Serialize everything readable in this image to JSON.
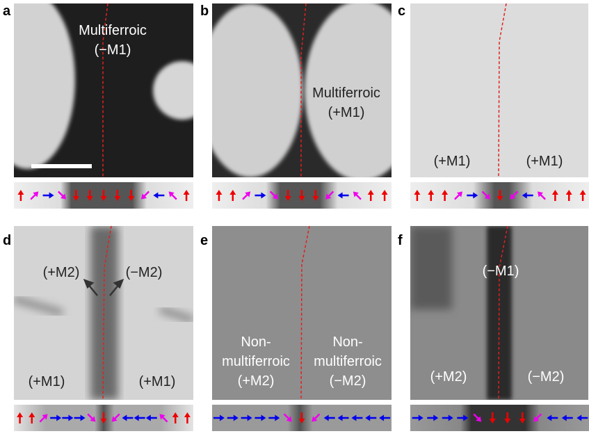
{
  "panels": [
    {
      "letter": "a",
      "labels": [
        [
          "Multiferroic",
          "(−M1)"
        ]
      ]
    },
    {
      "letter": "b",
      "labels": [
        [
          "Multiferroic",
          "(+M1)"
        ]
      ]
    },
    {
      "letter": "c",
      "labels": [
        [
          "(+M1)"
        ],
        [
          "(+M1)"
        ]
      ]
    },
    {
      "letter": "d",
      "labels": [
        [
          "(+M2)"
        ],
        [
          "(−M2)"
        ],
        [
          "(+M1)"
        ],
        [
          "(+M1)"
        ]
      ]
    },
    {
      "letter": "e",
      "labels": [
        [
          "Non-",
          "multiferroic",
          "(+M2)"
        ],
        [
          "Non-",
          "multiferroic",
          "(−M2)"
        ]
      ]
    },
    {
      "letter": "f",
      "labels": [
        [
          "(−M1)"
        ],
        [
          "(+M2)"
        ],
        [
          "(−M2)"
        ]
      ]
    }
  ]
}
